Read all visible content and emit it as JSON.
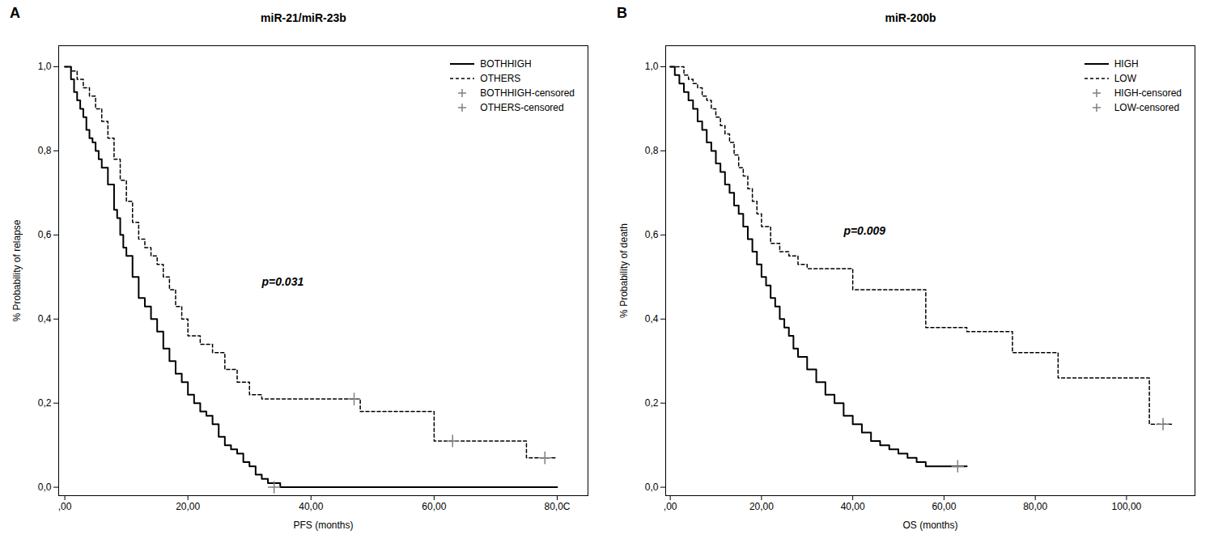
{
  "chart_data": [
    {
      "type": "step",
      "title": "miR-21/miR-23b",
      "panel_label": "A",
      "xlabel": "PFS (months)",
      "ylabel": "% Probability of relapse",
      "annotations": [
        {
          "text": "p=0.031",
          "x": 32,
          "y": 0.48
        }
      ],
      "xlim": [
        -1,
        85
      ],
      "ylim": [
        -0.02,
        1.05
      ],
      "xticks": [
        {
          "value": 0,
          "label": ",00"
        },
        {
          "value": 20,
          "label": "20,00"
        },
        {
          "value": 40,
          "label": "40,00"
        },
        {
          "value": 60,
          "label": "60,00"
        },
        {
          "value": 80,
          "label": "80,0C"
        }
      ],
      "yticks": [
        {
          "value": 0.0,
          "label": "0,0"
        },
        {
          "value": 0.2,
          "label": "0,2"
        },
        {
          "value": 0.4,
          "label": "0,4"
        },
        {
          "value": 0.6,
          "label": "0,6"
        },
        {
          "value": 0.8,
          "label": "0,8"
        },
        {
          "value": 1.0,
          "label": "1,0"
        }
      ],
      "legend": "upper right",
      "series": [
        {
          "name": "BOTHHIGH",
          "type": "step",
          "line_style": "solid",
          "color": "black",
          "x": [
            0,
            0.5,
            1,
            1.5,
            2,
            2.5,
            3,
            3.5,
            4,
            4.5,
            5,
            5.5,
            6,
            7,
            8,
            8.5,
            9,
            9.5,
            10,
            11,
            12,
            13,
            14,
            15,
            16,
            17,
            18,
            19,
            20,
            21,
            22,
            23,
            24,
            25,
            26,
            27,
            28,
            29,
            30,
            31,
            32,
            33,
            34,
            35,
            80
          ],
          "values": [
            1.0,
            1.0,
            0.97,
            0.94,
            0.92,
            0.9,
            0.88,
            0.85,
            0.83,
            0.82,
            0.8,
            0.78,
            0.76,
            0.72,
            0.66,
            0.64,
            0.6,
            0.57,
            0.55,
            0.5,
            0.45,
            0.43,
            0.4,
            0.37,
            0.33,
            0.3,
            0.27,
            0.25,
            0.22,
            0.2,
            0.18,
            0.17,
            0.15,
            0.12,
            0.1,
            0.09,
            0.08,
            0.06,
            0.05,
            0.03,
            0.02,
            0.01,
            0.01,
            0.0,
            0.0
          ]
        },
        {
          "name": "OTHERS",
          "type": "step",
          "line_style": "dashed",
          "color": "black",
          "x": [
            0,
            1,
            2,
            3,
            4,
            5,
            6,
            7,
            8,
            9,
            10,
            11,
            12,
            13,
            14,
            15,
            16,
            17,
            18,
            19,
            20,
            22,
            24,
            26,
            28,
            30,
            32,
            35,
            40,
            45,
            48,
            50,
            55,
            60,
            65,
            70,
            75,
            80
          ],
          "values": [
            1.0,
            0.99,
            0.97,
            0.95,
            0.93,
            0.9,
            0.87,
            0.83,
            0.78,
            0.73,
            0.68,
            0.63,
            0.59,
            0.57,
            0.55,
            0.53,
            0.5,
            0.47,
            0.43,
            0.4,
            0.36,
            0.34,
            0.32,
            0.28,
            0.25,
            0.22,
            0.21,
            0.21,
            0.21,
            0.21,
            0.18,
            0.18,
            0.18,
            0.11,
            0.11,
            0.11,
            0.07,
            0.07
          ]
        },
        {
          "name": "BOTHHIGH-censored",
          "type": "scatter",
          "marker": "plus",
          "color": "gray",
          "x": [
            34
          ],
          "values": [
            0.0
          ]
        },
        {
          "name": "OTHERS-censored",
          "type": "scatter",
          "marker": "plus",
          "color": "gray",
          "x": [
            47,
            63,
            78
          ],
          "values": [
            0.21,
            0.11,
            0.07
          ]
        }
      ]
    },
    {
      "type": "step",
      "title": "miR-200b",
      "panel_label": "B",
      "xlabel": "OS (months)",
      "ylabel": "% Probability of death",
      "annotations": [
        {
          "text": "p=0.009",
          "x": 38,
          "y": 0.6
        }
      ],
      "xlim": [
        -1,
        115
      ],
      "ylim": [
        -0.02,
        1.05
      ],
      "xticks": [
        {
          "value": 0,
          "label": ",00"
        },
        {
          "value": 20,
          "label": "20,00"
        },
        {
          "value": 40,
          "label": "40,00"
        },
        {
          "value": 60,
          "label": "60,00"
        },
        {
          "value": 80,
          "label": "80,00"
        },
        {
          "value": 100,
          "label": "100,00"
        }
      ],
      "yticks": [
        {
          "value": 0.0,
          "label": "0,0"
        },
        {
          "value": 0.2,
          "label": "0,2"
        },
        {
          "value": 0.4,
          "label": "0,4"
        },
        {
          "value": 0.6,
          "label": "0,6"
        },
        {
          "value": 0.8,
          "label": "0,8"
        },
        {
          "value": 1.0,
          "label": "1,0"
        }
      ],
      "legend": "upper right",
      "series": [
        {
          "name": "HIGH",
          "type": "step",
          "line_style": "solid",
          "color": "black",
          "x": [
            0,
            1,
            2,
            3,
            4,
            5,
            6,
            7,
            8,
            9,
            10,
            11,
            12,
            13,
            14,
            15,
            16,
            17,
            18,
            19,
            20,
            21,
            22,
            23,
            24,
            25,
            26,
            27,
            28,
            30,
            32,
            34,
            36,
            38,
            40,
            42,
            44,
            46,
            48,
            50,
            52,
            54,
            56,
            58,
            60,
            62,
            65
          ],
          "values": [
            1.0,
            0.98,
            0.96,
            0.94,
            0.92,
            0.9,
            0.87,
            0.85,
            0.82,
            0.8,
            0.77,
            0.75,
            0.72,
            0.7,
            0.67,
            0.65,
            0.62,
            0.59,
            0.56,
            0.53,
            0.5,
            0.48,
            0.45,
            0.43,
            0.4,
            0.38,
            0.36,
            0.33,
            0.31,
            0.28,
            0.25,
            0.22,
            0.2,
            0.17,
            0.15,
            0.13,
            0.11,
            0.1,
            0.09,
            0.08,
            0.07,
            0.06,
            0.05,
            0.05,
            0.05,
            0.05,
            0.05
          ]
        },
        {
          "name": "LOW",
          "type": "step",
          "line_style": "dashed",
          "color": "black",
          "x": [
            0,
            1,
            2,
            3,
            4,
            5,
            6,
            7,
            8,
            9,
            10,
            11,
            12,
            13,
            14,
            15,
            16,
            17,
            18,
            19,
            20,
            22,
            24,
            26,
            28,
            30,
            32,
            35,
            40,
            44,
            48,
            52,
            56,
            60,
            65,
            70,
            75,
            80,
            85,
            90,
            95,
            100,
            105,
            110
          ],
          "values": [
            1.0,
            1.0,
            1.0,
            0.98,
            0.97,
            0.96,
            0.95,
            0.93,
            0.92,
            0.9,
            0.88,
            0.86,
            0.84,
            0.82,
            0.79,
            0.76,
            0.74,
            0.71,
            0.68,
            0.65,
            0.62,
            0.58,
            0.56,
            0.55,
            0.53,
            0.52,
            0.52,
            0.52,
            0.47,
            0.47,
            0.47,
            0.47,
            0.38,
            0.38,
            0.37,
            0.37,
            0.32,
            0.32,
            0.26,
            0.26,
            0.26,
            0.26,
            0.15,
            0.15
          ]
        },
        {
          "name": "HIGH-censored",
          "type": "scatter",
          "marker": "plus",
          "color": "gray",
          "x": [
            63
          ],
          "values": [
            0.05
          ]
        },
        {
          "name": "LOW-censored",
          "type": "scatter",
          "marker": "plus",
          "color": "gray",
          "x": [
            108
          ],
          "values": [
            0.15
          ]
        }
      ]
    }
  ]
}
